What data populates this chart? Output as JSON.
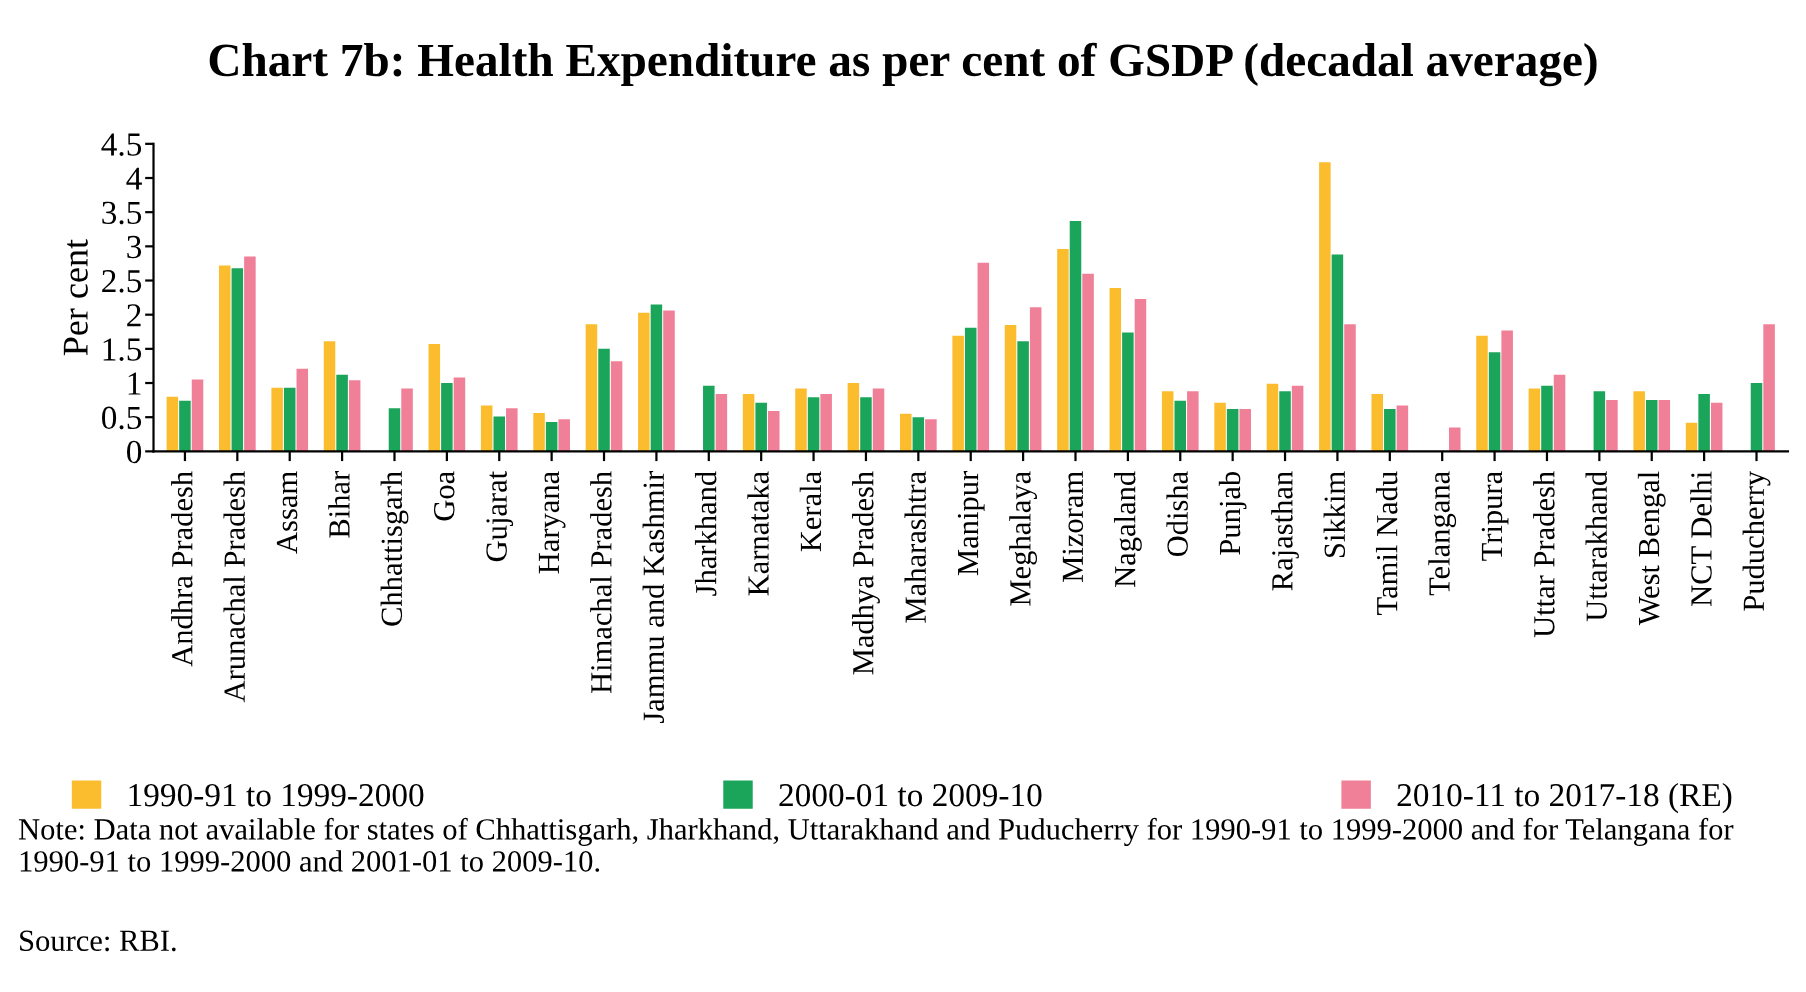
{
  "chart_data": {
    "type": "bar",
    "title": "Chart 7b: Health Expenditure as per cent of GSDP (decadal average)",
    "ylabel": "Per cent",
    "categories": [
      "Andhra Pradesh",
      "Arunachal Pradesh",
      "Assam",
      "Bihar",
      "Chhattisgarh",
      "Goa",
      "Gujarat",
      "Haryana",
      "Himachal Pradesh",
      "Jammu and Kashmir",
      "Jharkhand",
      "Karnataka",
      "Kerala",
      "Madhya Pradesh",
      "Maharashtra",
      "Manipur",
      "Meghalaya",
      "Mizoram",
      "Nagaland",
      "Odisha",
      "Punjab",
      "Rajasthan",
      "Sikkim",
      "Tamil Nadu",
      "Telangana",
      "Tripura",
      "Uttar Pradesh",
      "Uttarakhand",
      "West Bengal",
      "NCT Delhi",
      "Puducherry"
    ],
    "series": [
      {
        "name": "1990-91 to 1999-2000",
        "color": "#fbbd2e",
        "values": [
          0.8,
          2.72,
          0.93,
          1.61,
          null,
          1.57,
          0.67,
          0.56,
          1.86,
          2.03,
          null,
          0.84,
          0.92,
          1.0,
          0.55,
          1.69,
          1.85,
          2.96,
          2.39,
          0.88,
          0.71,
          0.99,
          4.23,
          0.84,
          null,
          1.69,
          0.92,
          null,
          0.88,
          0.42,
          null
        ]
      },
      {
        "name": "2000-01 to 2009-10",
        "color": "#1aa55a",
        "values": [
          0.74,
          2.68,
          0.93,
          1.12,
          0.63,
          1.0,
          0.51,
          0.43,
          1.5,
          2.15,
          0.96,
          0.71,
          0.79,
          0.79,
          0.5,
          1.81,
          1.61,
          3.37,
          1.74,
          0.74,
          0.62,
          0.88,
          2.88,
          0.62,
          null,
          1.45,
          0.96,
          0.88,
          0.75,
          0.84,
          1.0
        ]
      },
      {
        "name": "2010-11 to 2017-18 (RE)",
        "color": "#f07f98",
        "values": [
          1.05,
          2.85,
          1.21,
          1.04,
          0.92,
          1.08,
          0.63,
          0.47,
          1.32,
          2.06,
          0.84,
          0.59,
          0.84,
          0.92,
          0.47,
          2.76,
          2.11,
          2.6,
          2.23,
          0.88,
          0.62,
          0.96,
          1.86,
          0.67,
          0.35,
          1.77,
          1.12,
          0.75,
          0.75,
          0.71,
          1.86
        ]
      }
    ],
    "ylim": [
      0,
      4.5
    ],
    "yticks": [
      0,
      0.5,
      1,
      1.5,
      2,
      2.5,
      3,
      3.5,
      4,
      4.5
    ],
    "grid": false,
    "legend": "bottom",
    "annotations": [
      "Note: Data not available for states of Chhattisgarh, Jharkhand, Uttarakhand and Puducherry for 1990-91 to 1999-2000 and for Telangana for 1990-91 to 1999-2000 and 2001-01 to 2009-10.",
      "Source: RBI."
    ]
  }
}
